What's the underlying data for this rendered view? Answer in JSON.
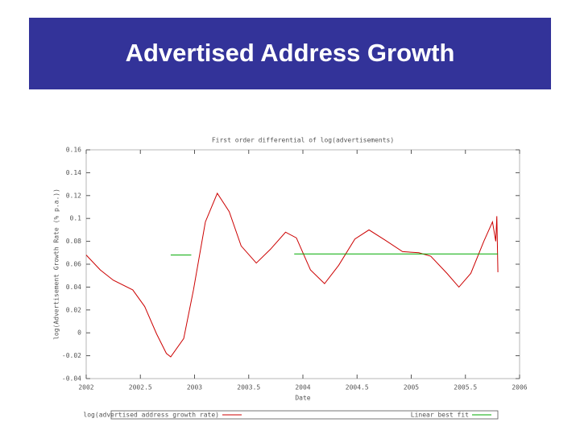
{
  "slide_title": "Advertised Address Growth",
  "chart_data": {
    "type": "line",
    "title": "First order differential of log(advertisements)",
    "xlabel": "Date",
    "ylabel": "log(Advertisement Growth Rate (% p.a.))",
    "xlim": [
      2002,
      2006
    ],
    "xticks": [
      2002,
      2002.5,
      2003,
      2003.5,
      2004,
      2004.5,
      2005,
      2005.5,
      2006
    ],
    "ylim": [
      -0.04,
      0.16
    ],
    "yticks": [
      -0.04,
      -0.02,
      0,
      0.02,
      0.04,
      0.06,
      0.08,
      0.1,
      0.12,
      0.14,
      0.16
    ],
    "legend": "bottom",
    "series": [
      {
        "name": "log(advertised address growth rate)",
        "color": "#cc0000",
        "x": [
          2002,
          2002.13,
          2002.25,
          2002.43,
          2002.54,
          2002.65,
          2002.74,
          2002.78,
          2002.9,
          2002.99,
          2003.1,
          2003.21,
          2003.32,
          2003.43,
          2003.57,
          2003.7,
          2003.84,
          2003.94,
          2004.07,
          2004.2,
          2004.33,
          2004.48,
          2004.61,
          2004.76,
          2004.92,
          2005.07,
          2005.18,
          2005.33,
          2005.44,
          2005.55,
          2005.67,
          2005.75,
          2005.78,
          2005.79,
          2005.8
        ],
        "values": [
          0.068,
          0.055,
          0.046,
          0.0375,
          0.023,
          -0.001,
          -0.018,
          -0.021,
          -0.005,
          0.0375,
          0.097,
          0.122,
          0.106,
          0.076,
          0.061,
          0.073,
          0.088,
          0.083,
          0.055,
          0.043,
          0.059,
          0.082,
          0.09,
          0.081,
          0.071,
          0.07,
          0.067,
          0.052,
          0.04,
          0.052,
          0.08,
          0.097,
          0.08,
          0.102,
          0.053
        ]
      },
      {
        "name": "Linear best fit",
        "color": "#00aa00",
        "x": [
          2002.78,
          2002.97,
          2003.45,
          2003.92,
          2005.8
        ],
        "values": [
          0.068,
          0.068,
          null,
          0.069,
          0.069
        ]
      }
    ]
  }
}
